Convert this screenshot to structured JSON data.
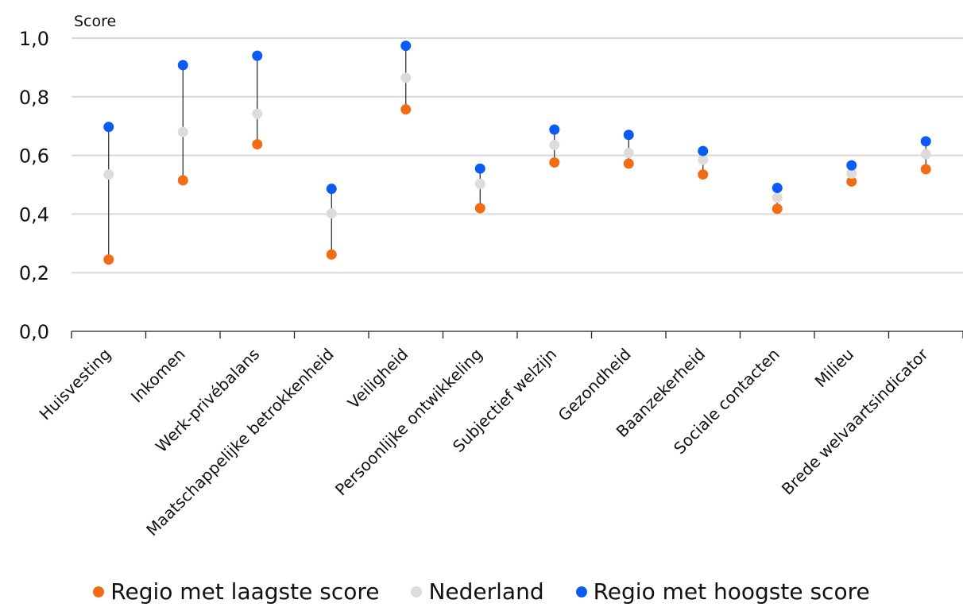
{
  "chart_data": {
    "type": "scatter",
    "ylabel": "Score",
    "ylim": [
      0,
      1
    ],
    "yticks": [
      "0,0",
      "0,2",
      "0,4",
      "0,6",
      "0,8",
      "1,0"
    ],
    "grid": true,
    "legend_position": "bottom",
    "categories": [
      "Huisvesting",
      "Inkomen",
      "Werk-privébalans",
      "Maatschappelijke betrokkenheid",
      "Veiligheid",
      "Persoonlijke ontwikkeling",
      "Subjectief welzijn",
      "Gezondheid",
      "Baanzekerheid",
      "Sociale contacten",
      "Milieu",
      "Brede welvaartsindicator"
    ],
    "series": [
      {
        "name": "Regio met laagste score",
        "color": "#f46b16",
        "values": [
          0.245,
          0.515,
          0.638,
          0.262,
          0.757,
          0.42,
          0.576,
          0.572,
          0.535,
          0.418,
          0.511,
          0.553
        ]
      },
      {
        "name": "Nederland",
        "color": "#dcdcdc",
        "values": [
          0.535,
          0.68,
          0.742,
          0.402,
          0.865,
          0.503,
          0.636,
          0.608,
          0.585,
          0.456,
          0.538,
          0.604
        ]
      },
      {
        "name": "Regio met hoogste score",
        "color": "#0a5cf5",
        "values": [
          0.697,
          0.908,
          0.94,
          0.486,
          0.974,
          0.555,
          0.688,
          0.67,
          0.615,
          0.489,
          0.566,
          0.648
        ]
      }
    ]
  }
}
